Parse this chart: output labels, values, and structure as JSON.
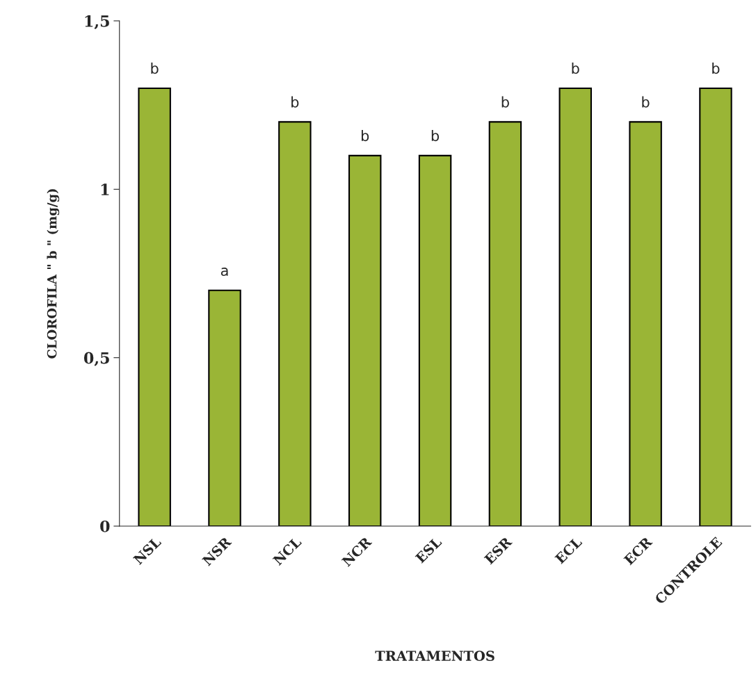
{
  "chart_data": {
    "type": "bar",
    "xlabel": "TRATAMENTOS",
    "ylabel": "CLOROFILA \" b \" (mg/g)",
    "categories": [
      "NSL",
      "NSR",
      "NCL",
      "NCR",
      "ESL",
      "ESR",
      "ECL",
      "ECR",
      "CONTROLE"
    ],
    "values": [
      1.3,
      0.7,
      1.2,
      1.1,
      1.1,
      1.2,
      1.3,
      1.2,
      1.3
    ],
    "value_labels": [
      "b",
      "a",
      "b",
      "b",
      "b",
      "b",
      "b",
      "b",
      "b"
    ],
    "color": "#9ab536",
    "ylim": [
      0,
      1.5
    ],
    "yticks": [
      {
        "value": 0,
        "label": "0"
      },
      {
        "value": 0.5,
        "label": "0,5"
      },
      {
        "value": 1,
        "label": "1"
      },
      {
        "value": 1.5,
        "label": "1,5"
      }
    ],
    "grid": false,
    "legend": false
  }
}
